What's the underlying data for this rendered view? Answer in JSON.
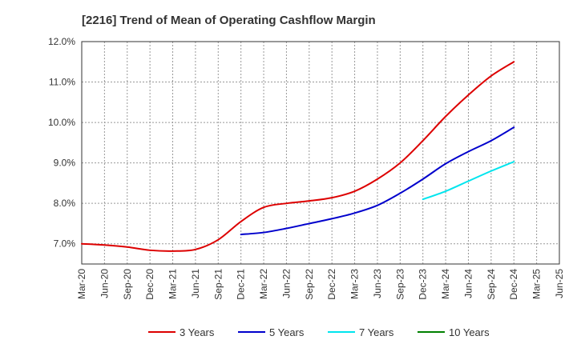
{
  "chart_data": {
    "type": "line",
    "title": "[2216]  Trend of Mean of Operating Cashflow Margin",
    "xlabel": "",
    "ylabel": "",
    "ylim": [
      6.5,
      12.0
    ],
    "yticks": [
      7.0,
      8.0,
      9.0,
      10.0,
      11.0,
      12.0
    ],
    "ytick_labels": [
      "7.0%",
      "8.0%",
      "9.0%",
      "10.0%",
      "11.0%",
      "12.0%"
    ],
    "categories": [
      "Mar-20",
      "Jun-20",
      "Sep-20",
      "Dec-20",
      "Mar-21",
      "Jun-21",
      "Sep-21",
      "Dec-21",
      "Mar-22",
      "Jun-22",
      "Sep-22",
      "Dec-22",
      "Mar-23",
      "Jun-23",
      "Sep-23",
      "Dec-23",
      "Mar-24",
      "Jun-24",
      "Sep-24",
      "Dec-24",
      "Mar-25",
      "Jun-25"
    ],
    "grid": true,
    "legend_position": "bottom",
    "series": [
      {
        "name": "3 Years",
        "color": "#dd0000",
        "values": [
          7.0,
          6.97,
          6.92,
          6.84,
          6.82,
          6.86,
          7.1,
          7.55,
          7.9,
          8.0,
          8.06,
          8.14,
          8.3,
          8.6,
          9.0,
          9.55,
          10.15,
          10.68,
          11.15,
          11.5,
          null,
          null
        ]
      },
      {
        "name": "5 Years",
        "color": "#0000cc",
        "values": [
          null,
          null,
          null,
          null,
          null,
          null,
          null,
          7.23,
          7.28,
          7.38,
          7.5,
          7.62,
          7.76,
          7.95,
          8.25,
          8.6,
          8.98,
          9.28,
          9.55,
          9.88,
          null,
          null
        ]
      },
      {
        "name": "7 Years",
        "color": "#00e5ee",
        "values": [
          null,
          null,
          null,
          null,
          null,
          null,
          null,
          null,
          null,
          null,
          null,
          null,
          null,
          null,
          null,
          8.1,
          8.3,
          8.55,
          8.8,
          9.03,
          null,
          null
        ]
      },
      {
        "name": "10 Years",
        "color": "#008000",
        "values": [
          null,
          null,
          null,
          null,
          null,
          null,
          null,
          null,
          null,
          null,
          null,
          null,
          null,
          null,
          null,
          null,
          null,
          null,
          null,
          null,
          null,
          null
        ]
      }
    ]
  }
}
